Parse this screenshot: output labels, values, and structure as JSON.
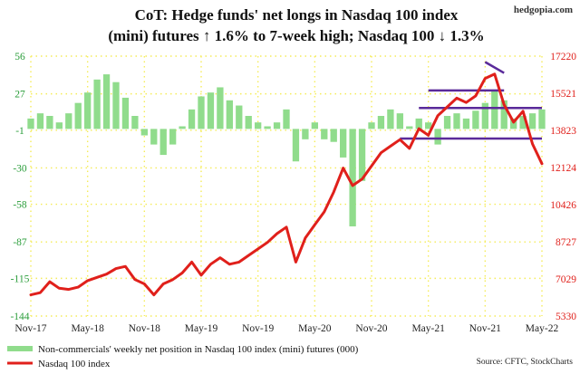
{
  "brand": "hedgopia.com",
  "source": "Source: CFTC, StockCharts",
  "colors": {
    "bars": "#90dc8c",
    "line": "#e0201b",
    "lines_annot": "#5a2a9a",
    "left_axis": "#2a9d3a",
    "right_axis": "#e0201b",
    "grid_dot": "#f5ec5a"
  },
  "chart_data": {
    "type": "bar+line",
    "title": "CoT: Hedge funds' net longs in Nasdaq 100 index (mini) futures ↑ 1.6% to 7-week high; Nasdaq 100 ↓ 1.3%",
    "title_lines": [
      "CoT: Hedge funds' net longs in Nasdaq 100 index",
      "(mini) futures ↑ 1.6% to 7-week high; Nasdaq 100 ↓ 1.3%"
    ],
    "x_ticks": [
      "Nov-17",
      "May-18",
      "Nov-18",
      "May-19",
      "Nov-19",
      "May-20",
      "Nov-20",
      "May-21",
      "Nov-21",
      "May-22"
    ],
    "x_range": [
      "2017-11",
      "2022-05"
    ],
    "left_axis": {
      "ticks": [
        56,
        27,
        -1,
        -30,
        -58,
        -87,
        -115,
        -144
      ],
      "ylim": [
        -144,
        56
      ]
    },
    "right_axis": {
      "ticks": [
        17220,
        15521,
        13823,
        12124,
        10426,
        8727,
        7029,
        5330
      ],
      "ylim": [
        5330,
        17220
      ]
    },
    "grid": "dotted",
    "legend_position": "bottom-left",
    "series": [
      {
        "name": "Non-commercials' weekly net position in Nasdaq 100 index (mini) futures (000)",
        "type": "bar",
        "axis": "left",
        "points": [
          [
            "2017-11",
            8
          ],
          [
            "2017-12",
            12
          ],
          [
            "2018-01",
            10
          ],
          [
            "2018-02",
            5
          ],
          [
            "2018-03",
            12
          ],
          [
            "2018-04",
            20
          ],
          [
            "2018-05",
            28
          ],
          [
            "2018-06",
            38
          ],
          [
            "2018-07",
            42
          ],
          [
            "2018-08",
            36
          ],
          [
            "2018-09",
            24
          ],
          [
            "2018-10",
            10
          ],
          [
            "2018-11",
            -5
          ],
          [
            "2018-12",
            -12
          ],
          [
            "2019-01",
            -20
          ],
          [
            "2019-02",
            -12
          ],
          [
            "2019-03",
            2
          ],
          [
            "2019-04",
            15
          ],
          [
            "2019-05",
            25
          ],
          [
            "2019-06",
            28
          ],
          [
            "2019-07",
            32
          ],
          [
            "2019-08",
            22
          ],
          [
            "2019-09",
            18
          ],
          [
            "2019-10",
            10
          ],
          [
            "2019-11",
            5
          ],
          [
            "2019-12",
            2
          ],
          [
            "2020-01",
            5
          ],
          [
            "2020-02",
            15
          ],
          [
            "2020-03",
            -25
          ],
          [
            "2020-04",
            -8
          ],
          [
            "2020-05",
            5
          ],
          [
            "2020-06",
            -8
          ],
          [
            "2020-07",
            -10
          ],
          [
            "2020-08",
            -22
          ],
          [
            "2020-09",
            -75
          ],
          [
            "2020-10",
            -40
          ],
          [
            "2020-11",
            5
          ],
          [
            "2020-12",
            10
          ],
          [
            "2021-01",
            15
          ],
          [
            "2021-02",
            12
          ],
          [
            "2021-03",
            2
          ],
          [
            "2021-04",
            8
          ],
          [
            "2021-05",
            5
          ],
          [
            "2021-06",
            -12
          ],
          [
            "2021-07",
            10
          ],
          [
            "2021-08",
            12
          ],
          [
            "2021-09",
            8
          ],
          [
            "2021-10",
            14
          ],
          [
            "2021-11",
            20
          ],
          [
            "2021-12",
            30
          ],
          [
            "2022-01",
            22
          ],
          [
            "2022-02",
            8
          ],
          [
            "2022-03",
            10
          ],
          [
            "2022-04",
            12
          ],
          [
            "2022-05",
            15
          ]
        ]
      },
      {
        "name": "Nasdaq 100 index",
        "type": "line",
        "axis": "right",
        "points": [
          [
            "2017-11",
            6300
          ],
          [
            "2017-12",
            6400
          ],
          [
            "2018-01",
            6900
          ],
          [
            "2018-02",
            6600
          ],
          [
            "2018-03",
            6550
          ],
          [
            "2018-04",
            6650
          ],
          [
            "2018-05",
            6950
          ],
          [
            "2018-06",
            7100
          ],
          [
            "2018-07",
            7250
          ],
          [
            "2018-08",
            7500
          ],
          [
            "2018-09",
            7600
          ],
          [
            "2018-10",
            7000
          ],
          [
            "2018-11",
            6800
          ],
          [
            "2018-12",
            6300
          ],
          [
            "2019-01",
            6800
          ],
          [
            "2019-02",
            7000
          ],
          [
            "2019-03",
            7300
          ],
          [
            "2019-04",
            7800
          ],
          [
            "2019-05",
            7200
          ],
          [
            "2019-06",
            7700
          ],
          [
            "2019-07",
            8000
          ],
          [
            "2019-08",
            7700
          ],
          [
            "2019-09",
            7800
          ],
          [
            "2019-10",
            8100
          ],
          [
            "2019-11",
            8400
          ],
          [
            "2019-12",
            8700
          ],
          [
            "2020-01",
            9100
          ],
          [
            "2020-02",
            9400
          ],
          [
            "2020-03",
            7800
          ],
          [
            "2020-04",
            8900
          ],
          [
            "2020-05",
            9500
          ],
          [
            "2020-06",
            10100
          ],
          [
            "2020-07",
            11000
          ],
          [
            "2020-08",
            12100
          ],
          [
            "2020-09",
            11300
          ],
          [
            "2020-10",
            11600
          ],
          [
            "2020-11",
            12200
          ],
          [
            "2020-12",
            12800
          ],
          [
            "2021-01",
            13100
          ],
          [
            "2021-02",
            13400
          ],
          [
            "2021-03",
            13000
          ],
          [
            "2021-04",
            13900
          ],
          [
            "2021-05",
            13600
          ],
          [
            "2021-06",
            14500
          ],
          [
            "2021-07",
            14900
          ],
          [
            "2021-08",
            15300
          ],
          [
            "2021-09",
            15100
          ],
          [
            "2021-10",
            15400
          ],
          [
            "2021-11",
            16200
          ],
          [
            "2021-12",
            16400
          ],
          [
            "2022-01",
            15000
          ],
          [
            "2022-02",
            14200
          ],
          [
            "2022-03",
            14700
          ],
          [
            "2022-04",
            13200
          ],
          [
            "2022-05",
            12300
          ]
        ]
      }
    ]
  }
}
